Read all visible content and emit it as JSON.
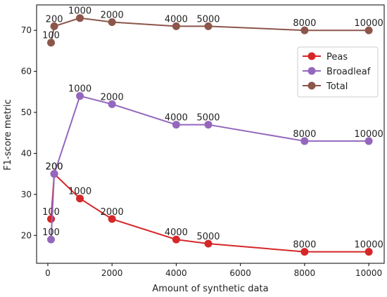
{
  "chart_data": {
    "type": "line",
    "xlabel": "Amount of synthetic data",
    "ylabel": "F1-score metric",
    "xlim": [
      -350,
      10480
    ],
    "ylim": [
      13.2,
      76.2
    ],
    "xticks": [
      0,
      2000,
      4000,
      6000,
      8000,
      10000
    ],
    "yticks": [
      20,
      30,
      40,
      50,
      60,
      70
    ],
    "grid": false,
    "legend": {
      "position": "upper-right"
    },
    "x": [
      100,
      200,
      1000,
      2000,
      4000,
      5000,
      8000,
      10000
    ],
    "point_labels": [
      "100",
      "200",
      "1000",
      "2000",
      "4000",
      "5000",
      "8000",
      "10000"
    ],
    "series": [
      {
        "name": "Peas",
        "color": "#d62728",
        "values": [
          24,
          35,
          29,
          24,
          19,
          18,
          16,
          16
        ]
      },
      {
        "name": "Broadleaf",
        "color": "#9467bd",
        "values": [
          19,
          35,
          54,
          52,
          47,
          47,
          43,
          43
        ]
      },
      {
        "name": "Total",
        "color": "#8c564b",
        "values": [
          67,
          71,
          73,
          72,
          71,
          71,
          70,
          70
        ]
      }
    ]
  }
}
